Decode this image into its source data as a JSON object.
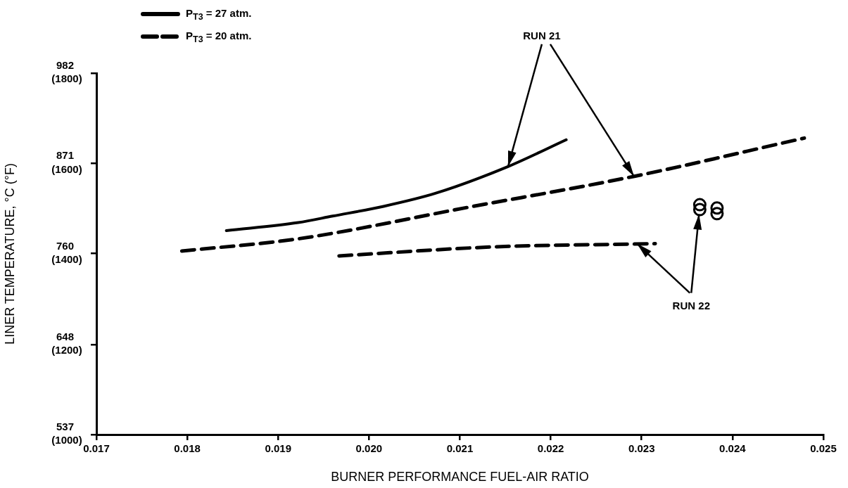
{
  "chart_data": {
    "type": "line",
    "xlabel": "BURNER PERFORMANCE FUEL-AIR RATIO",
    "ylabel": "LINER TEMPERATURE, °C (°F)",
    "xlim": [
      0.017,
      0.025
    ],
    "xticks": [
      0.017,
      0.018,
      0.019,
      {
        "value": 0.02,
        "label": "0.020"
      },
      0.021,
      0.022,
      0.023,
      0.024,
      0.025
    ],
    "ylim": [
      537,
      982
    ],
    "yticks": [
      537,
      648,
      760,
      871,
      982
    ],
    "y2lim": [
      1000,
      1800
    ],
    "y2ticks": [
      {
        "value": 1000,
        "label": "(1000)"
      },
      {
        "value": 1200,
        "label": "(1200)"
      },
      {
        "value": 1400,
        "label": "(1400)"
      },
      {
        "value": 1600,
        "label": "(1600)"
      },
      {
        "value": 1800,
        "label": "(1800)"
      }
    ],
    "grid": false,
    "legend": "top left",
    "marker": "none",
    "annotations": [
      {
        "text": "RUN 21",
        "x": 0.02153,
        "y": 867
      },
      {
        "text": "RUN 22",
        "x": 0.02295,
        "y": 772
      }
    ],
    "series": [
      {
        "name": "P$_{T3}$ = 27 atm.",
        "line_style": "solid",
        "color": "#000000",
        "x": [
          0.01843,
          0.01922,
          0.0196,
          0.02016,
          0.02073,
          0.02153,
          0.02217
        ],
        "values": [
          788,
          798,
          806,
          818,
          834,
          867,
          900
        ]
      },
      {
        "name": "P$_{T3}$ = 20 atm.",
        "line_style": "dashed",
        "color": "#000000",
        "x": [
          0.01794,
          0.01922,
          0.0211,
          0.02292,
          0.02479
        ],
        "values": [
          763,
          778,
          817,
          855,
          902
        ]
      },
      {
        "line_style": "dashed",
        "color": "#000000",
        "x": [
          0.01967,
          0.02136,
          0.02315
        ],
        "values": [
          757,
          768,
          772
        ]
      },
      {
        "type": "scatter",
        "marker": "circle",
        "color": "#000000",
        "x": [
          0.02364,
          0.02364,
          0.02383,
          0.02383
        ],
        "values": [
          820,
          814,
          816,
          809
        ]
      }
    ]
  }
}
